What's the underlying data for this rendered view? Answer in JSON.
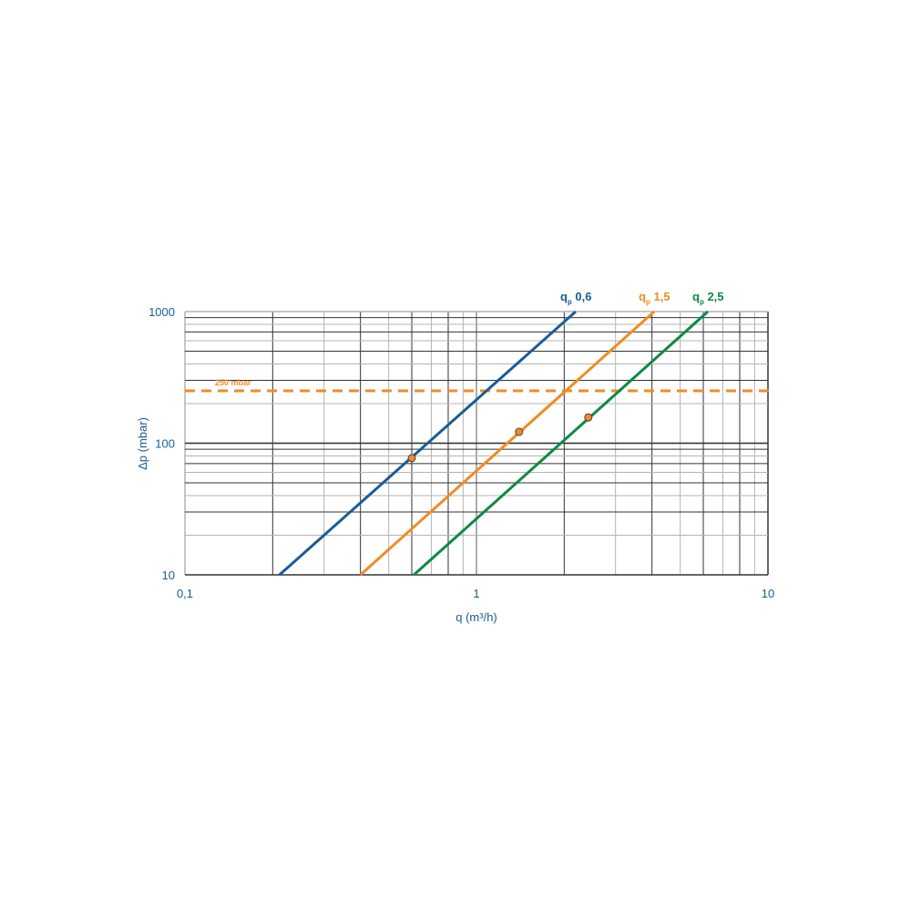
{
  "chart_data": {
    "type": "line",
    "title": "",
    "xlabel": "q (m³/h)",
    "ylabel": "Δp (mbar)",
    "xscale": "log",
    "yscale": "log",
    "xlim": [
      0.1,
      10
    ],
    "ylim": [
      10,
      1000
    ],
    "grid": true,
    "x_tick_labels": [
      "0,1",
      "1",
      "10"
    ],
    "x_ticks": [
      0.1,
      1,
      10
    ],
    "y_tick_labels": [
      "10",
      "100",
      "1000"
    ],
    "y_ticks": [
      10,
      100,
      1000
    ],
    "series": [
      {
        "name": "q",
        "subscript": "p",
        "value_label": "0,6",
        "color": "#1a5c96",
        "points": [
          [
            0.211,
            10
          ],
          [
            2.19,
            1000
          ]
        ],
        "marker": [
          0.6,
          77
        ]
      },
      {
        "name": "q",
        "subscript": "p",
        "value_label": "1,5",
        "color": "#f08c23",
        "points": [
          [
            0.4,
            10
          ],
          [
            4.07,
            1000
          ]
        ],
        "marker": [
          1.4,
          122
        ]
      },
      {
        "name": "q",
        "subscript": "p",
        "value_label": "2,5",
        "color": "#0e8a45",
        "points": [
          [
            0.61,
            10
          ],
          [
            6.22,
            1000
          ]
        ],
        "marker": [
          2.42,
          157
        ]
      }
    ],
    "reference_line": {
      "y": 250,
      "label": "250 mbar",
      "color": "#f08c23",
      "style": "dashed"
    }
  }
}
